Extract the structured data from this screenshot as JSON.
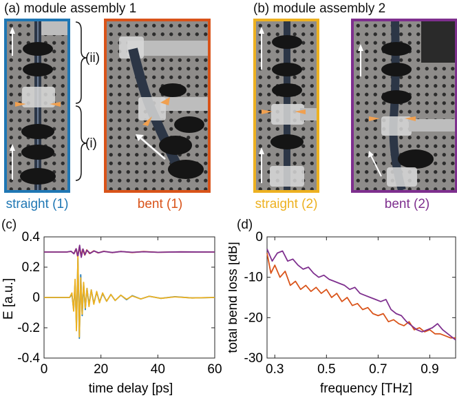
{
  "panels": {
    "a_title": "(a) module assembly 1",
    "b_title": "(b) module assembly 2",
    "c_label": "(c)",
    "d_label": "(d)",
    "brace_ii": "(ii)",
    "brace_i": "(i)"
  },
  "photos": [
    {
      "caption": "straight (1)",
      "color": "#1f77b4"
    },
    {
      "caption": "bent (1)",
      "color": "#d95319"
    },
    {
      "caption": "straight (2)",
      "color": "#edb120"
    },
    {
      "caption": "bent (2)",
      "color": "#7e2f8e"
    }
  ],
  "chart_data": [
    {
      "type": "line",
      "xlabel": "time delay [ps]",
      "ylabel": "E [a.u.]",
      "xlim": [
        0,
        60
      ],
      "ylim": [
        -0.4,
        0.4
      ],
      "xticks": [
        0,
        20,
        40,
        60
      ],
      "yticks": [
        -0.4,
        -0.2,
        0,
        0.2,
        0.4
      ],
      "grid": false,
      "series": [
        {
          "color": "#d95319",
          "offset": 0.3,
          "x": [
            0,
            8,
            9.5,
            10.5,
            11.2,
            11.8,
            12.4,
            13.0,
            13.6,
            14.3,
            15.0,
            16,
            17.5,
            19,
            21,
            24,
            27,
            31,
            35,
            40,
            48,
            60
          ],
          "y": [
            0,
            0,
            0.004,
            -0.01,
            0.02,
            -0.03,
            0.035,
            -0.025,
            0.018,
            -0.02,
            0.014,
            -0.01,
            0.008,
            -0.006,
            0.005,
            -0.004,
            0.004,
            -0.003,
            0.003,
            -0.002,
            0.001,
            0
          ]
        },
        {
          "color": "#7e2f8e",
          "offset": 0.3,
          "x": [
            0,
            8,
            9.5,
            10.5,
            11.3,
            11.9,
            12.5,
            13.1,
            13.7,
            14.4,
            15.1,
            16.2,
            17.6,
            19.2,
            21,
            24,
            27,
            31,
            35,
            40,
            48,
            60
          ],
          "y": [
            0,
            0,
            0.005,
            -0.012,
            0.022,
            -0.03,
            0.045,
            -0.035,
            0.02,
            -0.018,
            0.012,
            -0.009,
            0.007,
            -0.005,
            0.004,
            -0.003,
            0.003,
            -0.002,
            0.002,
            -0.002,
            0.001,
            0
          ]
        },
        {
          "color": "#1f77b4",
          "offset": 0,
          "x": [
            0,
            9,
            9.8,
            10.4,
            10.9,
            11.4,
            11.9,
            12.4,
            12.9,
            13.4,
            13.9,
            14.5,
            15.1,
            15.8,
            16.6,
            17.5,
            18.5,
            19.5,
            20.6,
            22,
            23.5,
            25,
            27,
            29,
            31,
            34,
            37,
            41,
            46,
            52,
            60
          ],
          "y": [
            0,
            0,
            0.02,
            -0.08,
            0.1,
            -0.2,
            0.26,
            -0.27,
            0.15,
            -0.12,
            0.09,
            -0.08,
            0.06,
            -0.05,
            0.05,
            -0.04,
            0.035,
            -0.03,
            0.025,
            -0.025,
            0.02,
            -0.02,
            0.015,
            -0.015,
            0.012,
            -0.01,
            0.008,
            -0.006,
            0.005,
            -0.003,
            0
          ]
        },
        {
          "color": "#edb120",
          "offset": 0,
          "x": [
            0,
            9,
            9.8,
            10.4,
            10.9,
            11.4,
            11.9,
            12.4,
            12.9,
            13.4,
            13.9,
            14.5,
            15.1,
            15.8,
            16.6,
            17.5,
            18.5,
            19.5,
            20.6,
            22,
            23.5,
            25,
            27,
            29,
            31,
            34,
            37,
            41,
            46,
            52,
            60
          ],
          "y": [
            0,
            0,
            0.03,
            -0.09,
            0.12,
            -0.22,
            0.27,
            -0.26,
            0.13,
            -0.11,
            0.1,
            -0.07,
            0.06,
            -0.06,
            0.05,
            -0.045,
            0.04,
            -0.035,
            0.03,
            -0.025,
            0.02,
            -0.02,
            0.015,
            -0.012,
            0.01,
            -0.01,
            0.008,
            -0.006,
            0.004,
            -0.003,
            0
          ]
        }
      ]
    },
    {
      "type": "line",
      "xlabel": "frequency [THz]",
      "ylabel": "total bend loss [dB]",
      "xlim": [
        0.27,
        1.0
      ],
      "ylim": [
        -30,
        0
      ],
      "xticks": [
        0.3,
        0.5,
        0.7,
        0.9
      ],
      "yticks": [
        -30,
        -20,
        -10,
        0
      ],
      "grid": false,
      "series": [
        {
          "color": "#d95319",
          "x": [
            0.27,
            0.285,
            0.3,
            0.32,
            0.34,
            0.36,
            0.38,
            0.4,
            0.42,
            0.44,
            0.46,
            0.48,
            0.5,
            0.52,
            0.54,
            0.56,
            0.58,
            0.6,
            0.62,
            0.64,
            0.66,
            0.68,
            0.7,
            0.72,
            0.74,
            0.76,
            0.78,
            0.8,
            0.82,
            0.84,
            0.86,
            0.88,
            0.9,
            0.92,
            0.94,
            0.96,
            0.98,
            1.0
          ],
          "y": [
            -4,
            -9,
            -7,
            -10,
            -8.5,
            -12,
            -11,
            -13,
            -12,
            -13.5,
            -12.5,
            -14,
            -13,
            -15,
            -14,
            -16,
            -15,
            -17,
            -16.5,
            -18,
            -17.5,
            -19,
            -19.5,
            -19,
            -21,
            -20.5,
            -21.5,
            -22,
            -21,
            -23,
            -22.5,
            -23.5,
            -23,
            -24,
            -24,
            -24.5,
            -25,
            -25
          ]
        },
        {
          "color": "#7e2f8e",
          "x": [
            0.27,
            0.29,
            0.31,
            0.33,
            0.35,
            0.37,
            0.39,
            0.41,
            0.43,
            0.45,
            0.47,
            0.49,
            0.51,
            0.53,
            0.55,
            0.57,
            0.59,
            0.61,
            0.63,
            0.65,
            0.67,
            0.69,
            0.71,
            0.73,
            0.75,
            0.77,
            0.79,
            0.81,
            0.83,
            0.85,
            0.87,
            0.89,
            0.91,
            0.93,
            0.95,
            0.97,
            0.99,
            1.0
          ],
          "y": [
            -3,
            -6,
            -4,
            -3.5,
            -6,
            -5.5,
            -7,
            -8,
            -7.5,
            -9,
            -10,
            -9.5,
            -10.5,
            -11,
            -11.5,
            -12,
            -13,
            -12.5,
            -14,
            -14.5,
            -15,
            -15.5,
            -16,
            -15.5,
            -18,
            -19,
            -19.5,
            -21,
            -22,
            -23,
            -23.5,
            -23,
            -22.5,
            -21.5,
            -23,
            -24,
            -25,
            -25.5
          ]
        }
      ]
    }
  ]
}
